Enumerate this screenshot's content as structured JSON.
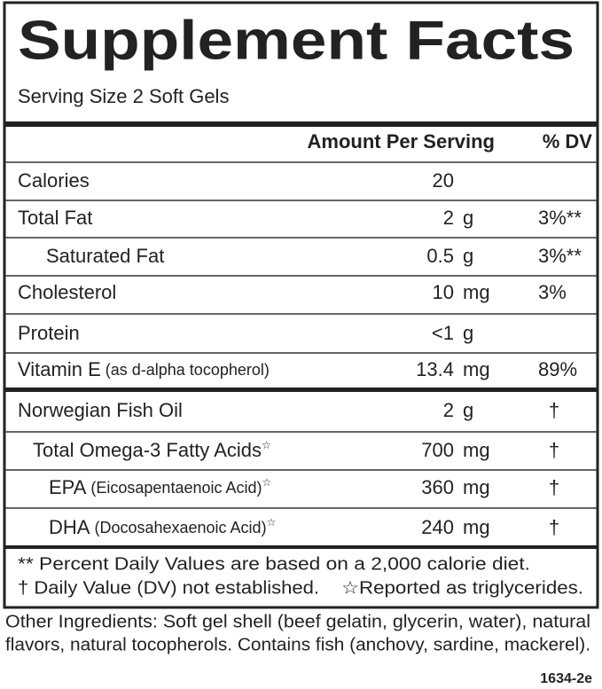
{
  "title": "Supplement Facts",
  "serving_size": "Serving Size 2 Soft Gels",
  "header": {
    "amount": "Amount Per Serving",
    "dv": "% DV"
  },
  "rows": [
    {
      "name": "Calories",
      "amount": 20
    },
    {
      "name": "Total Fat",
      "amount": 2,
      "unit": "g",
      "dv": "3%**"
    },
    {
      "name": "Saturated Fat",
      "amount": 0.5,
      "unit": "g",
      "dv": "3%**"
    },
    {
      "name": "Cholesterol",
      "amount": 10,
      "unit": "mg",
      "dv": "3%"
    },
    {
      "name": "Protein",
      "amount": "<1",
      "unit": "g"
    },
    {
      "name": "Vitamin E",
      "detail": "(as d-alpha tocopherol)",
      "amount": 13.4,
      "unit": "mg",
      "dv": "89%"
    },
    {
      "name": "Norwegian Fish Oil",
      "amount": 2,
      "unit": "g",
      "dv": "†"
    },
    {
      "name": "Total Omega-3 Fatty Acids",
      "star": "☆",
      "amount": 700,
      "unit": "mg",
      "dv": "†"
    },
    {
      "name": "EPA",
      "detail": "(Eicosapentaenoic Acid)",
      "star": "☆",
      "amount": 360,
      "unit": "mg",
      "dv": "†"
    },
    {
      "name": "DHA",
      "detail": "(Docosahexaenoic Acid)",
      "star": "☆",
      "amount": 240,
      "unit": "mg",
      "dv": "†"
    }
  ],
  "footnotes": [
    "** Percent Daily Values are based on a 2,000 calorie diet.",
    "† Daily Value (DV) not established.",
    "☆Reported as triglycerides."
  ],
  "other_ingredients": [
    "Other Ingredients: Soft gel shell (beef gelatin, glycerin, water), natural",
    "flavors, natural tocopherols. Contains fish (anchovy, sardine, mackerel)."
  ],
  "code": "1634-2e"
}
